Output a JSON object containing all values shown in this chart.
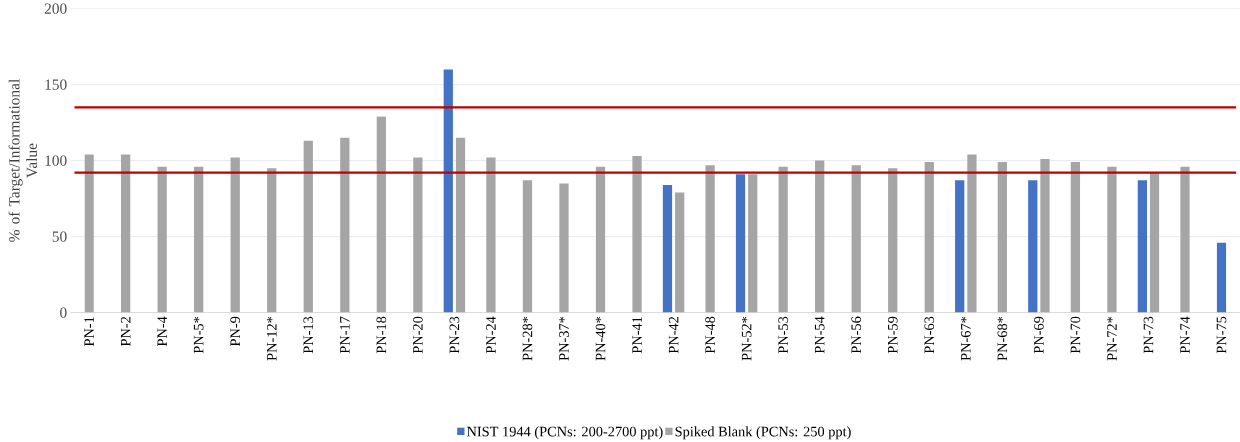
{
  "chart_data": {
    "type": "bar",
    "ylabel": "% of Target/Informational Value",
    "categories": [
      "PN-1",
      "PN-2",
      "PN-4",
      "PN-5*",
      "PN-9",
      "PN-12*",
      "PN-13",
      "PN-17",
      "PN-18",
      "PN-20",
      "PN-23",
      "PN-24",
      "PN-28*",
      "PN-37*",
      "PN-40*",
      "PN-41",
      "PN-42",
      "PN-48",
      "PN-52*",
      "PN-53",
      "PN-54",
      "PN-56",
      "PN-59",
      "PN-63",
      "PN-67*",
      "PN-68*",
      "PN-69",
      "PN-70",
      "PN-72*",
      "PN-73",
      "PN-74",
      "PN-75"
    ],
    "series": [
      {
        "name": "NIST 1944 (PCNs: 200-2700 ppt)",
        "color": "#4472c4",
        "values": [
          null,
          null,
          null,
          null,
          null,
          null,
          null,
          null,
          null,
          null,
          160,
          null,
          null,
          null,
          null,
          null,
          84,
          null,
          91,
          null,
          null,
          null,
          null,
          null,
          87,
          null,
          87,
          null,
          null,
          87,
          null,
          46
        ]
      },
      {
        "name": "Spiked Blank (PCNs: 250 ppt)",
        "color": "#a5a5a5",
        "values": [
          104,
          104,
          96,
          96,
          102,
          95,
          113,
          115,
          129,
          102,
          115,
          102,
          87,
          85,
          96,
          103,
          79,
          97,
          91,
          96,
          100,
          97,
          95,
          99,
          104,
          99,
          101,
          99,
          96,
          92,
          96,
          null
        ]
      }
    ],
    "ylim": [
      0,
      200
    ],
    "yticks": [
      0,
      50,
      100,
      150,
      200
    ],
    "grid": "y",
    "legend": "bottom",
    "ref_lines": [
      {
        "axis": "y",
        "value": 135,
        "color": "#c00000"
      },
      {
        "axis": "y",
        "value": 92,
        "color": "#c00000"
      }
    ]
  }
}
